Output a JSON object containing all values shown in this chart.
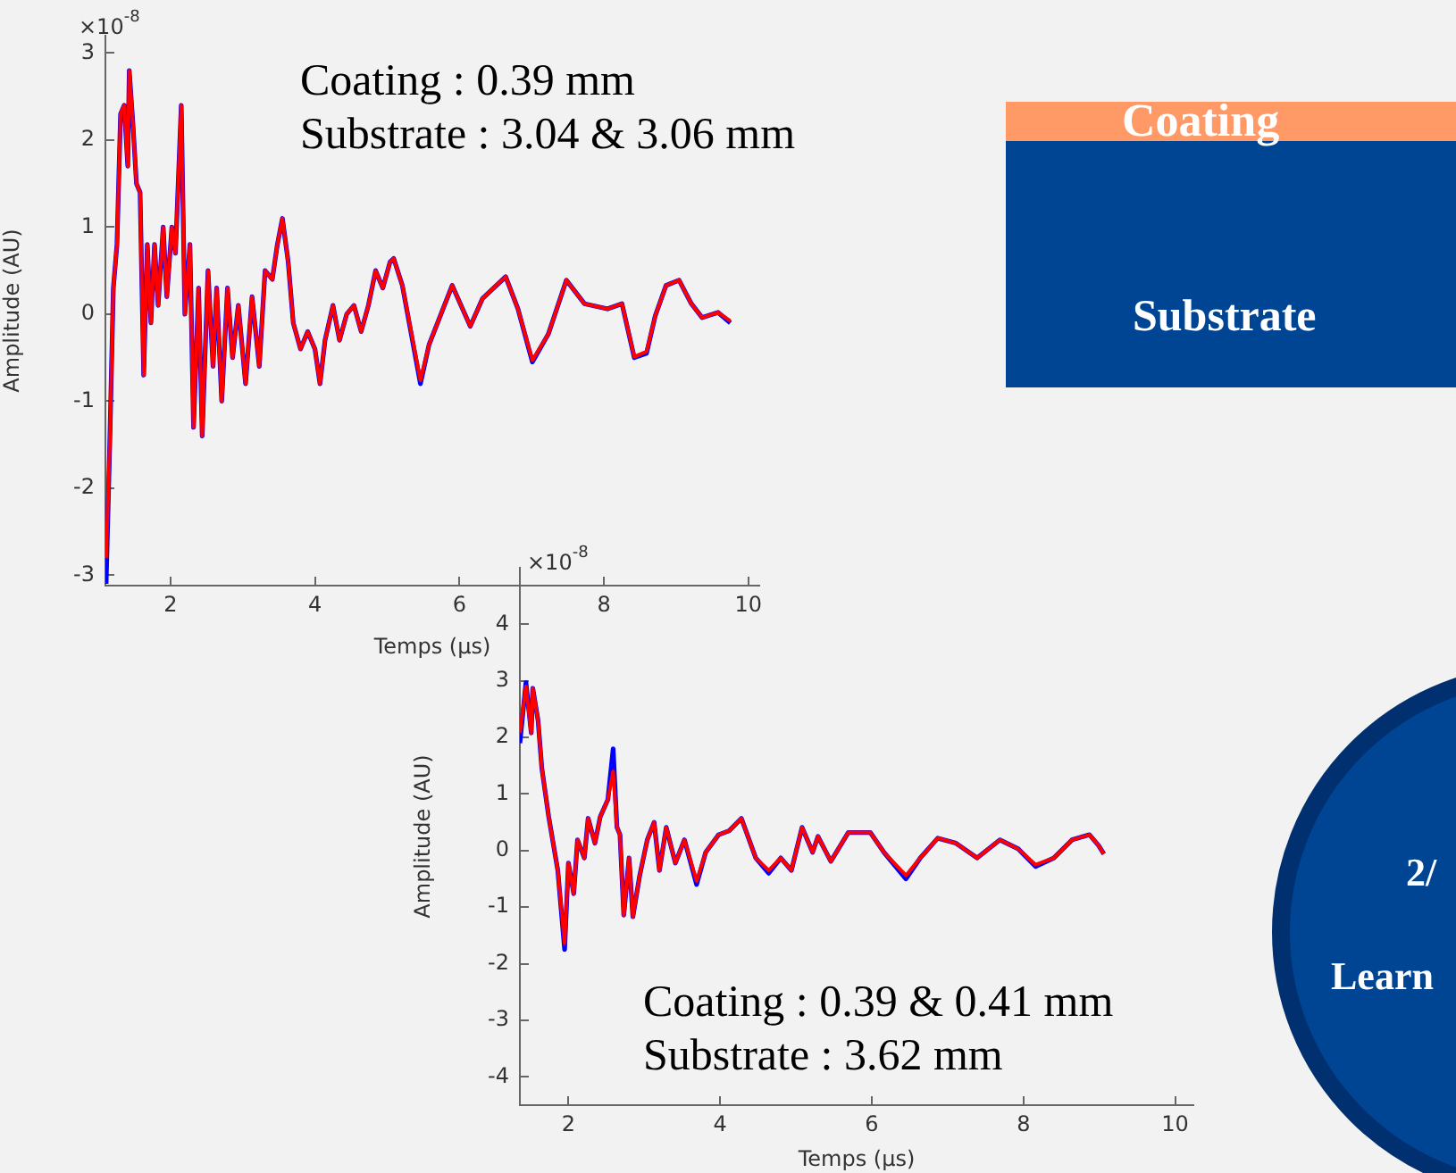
{
  "chart_data": [
    {
      "type": "line",
      "xlabel": "Temps (µs)",
      "ylabel": "Amplitude (AU)",
      "xlim": [
        1.1,
        10.15
      ],
      "ylim": [
        -3.12,
        3.2
      ],
      "xticks": [
        2,
        4,
        6,
        8,
        10
      ],
      "yticks": [
        -3,
        -2,
        -1,
        0,
        1,
        2,
        3
      ],
      "grid": false,
      "legend": false,
      "marker": "none",
      "annotations": [
        "×10$^{-8}$",
        "Coating : 0.39 mm",
        "Substrate : 3.04 & 3.06 mm"
      ],
      "x": [
        1.11,
        1.16,
        1.21,
        1.26,
        1.31,
        1.36,
        1.41,
        1.43,
        1.48,
        1.53,
        1.58,
        1.63,
        1.68,
        1.73,
        1.78,
        1.83,
        1.9,
        1.95,
        2.02,
        2.07,
        2.15,
        2.2,
        2.27,
        2.32,
        2.39,
        2.44,
        2.52,
        2.59,
        2.64,
        2.71,
        2.79,
        2.86,
        2.94,
        3.04,
        3.13,
        3.23,
        3.31,
        3.41,
        3.48,
        3.55,
        3.63,
        3.7,
        3.8,
        3.9,
        4.0,
        4.07,
        4.14,
        4.25,
        4.34,
        4.44,
        4.54,
        4.64,
        4.74,
        4.84,
        4.94,
        5.04,
        5.09,
        5.21,
        5.46,
        5.58,
        5.9,
        6.15,
        6.32,
        6.64,
        6.81,
        7.01,
        7.23,
        7.48,
        7.73,
        8.05,
        8.25,
        8.42,
        8.59,
        8.71,
        8.86,
        9.04,
        9.21,
        9.36,
        9.58,
        9.75
      ],
      "series": [
        {
          "color": "#0000ff",
          "values": [
            -3.1,
            -1.5,
            0.3,
            0.8,
            2.3,
            2.4,
            1.7,
            2.8,
            2.2,
            1.5,
            1.4,
            -0.7,
            0.8,
            -0.1,
            0.8,
            0.1,
            1.0,
            0.2,
            1.0,
            0.7,
            2.4,
            0.0,
            0.8,
            -1.3,
            0.3,
            -1.4,
            0.5,
            -0.6,
            0.3,
            -1.0,
            0.3,
            -0.5,
            0.1,
            -0.8,
            0.2,
            -0.6,
            0.5,
            0.4,
            0.8,
            1.1,
            0.6,
            -0.1,
            -0.4,
            -0.2,
            -0.4,
            -0.8,
            -0.3,
            0.1,
            -0.3,
            0.0,
            0.1,
            -0.2,
            0.1,
            0.5,
            0.3,
            0.6,
            0.64,
            0.33,
            -0.8,
            -0.35,
            0.33,
            -0.14,
            0.18,
            0.43,
            0.06,
            -0.55,
            -0.23,
            0.39,
            0.12,
            0.06,
            0.12,
            -0.5,
            -0.45,
            -0.02,
            0.33,
            0.39,
            0.12,
            -0.04,
            0.02,
            -0.1
          ]
        },
        {
          "color": "#ff0000",
          "values": [
            -2.8,
            -1.5,
            0.3,
            0.8,
            2.3,
            2.4,
            1.7,
            2.8,
            2.2,
            1.5,
            1.4,
            -0.7,
            0.8,
            -0.1,
            0.8,
            0.1,
            1.0,
            0.2,
            1.0,
            0.7,
            2.4,
            0.0,
            0.8,
            -1.3,
            0.3,
            -1.4,
            0.5,
            -0.6,
            0.3,
            -1.0,
            0.3,
            -0.5,
            0.1,
            -0.8,
            0.2,
            -0.6,
            0.5,
            0.4,
            0.8,
            1.1,
            0.6,
            -0.1,
            -0.4,
            -0.2,
            -0.4,
            -0.8,
            -0.3,
            0.1,
            -0.3,
            0.0,
            0.1,
            -0.2,
            0.1,
            0.5,
            0.3,
            0.6,
            0.64,
            0.33,
            -0.76,
            -0.35,
            0.33,
            -0.14,
            0.18,
            0.43,
            0.06,
            -0.53,
            -0.23,
            0.39,
            0.12,
            0.06,
            0.12,
            -0.49,
            -0.43,
            -0.02,
            0.33,
            0.39,
            0.12,
            -0.04,
            0.02,
            -0.08
          ]
        }
      ]
    },
    {
      "type": "line",
      "xlabel": "Temps (µs)",
      "ylabel": "Amplitude (AU)",
      "xlim": [
        1.36,
        10.24
      ],
      "ylim": [
        -4.5,
        5
      ],
      "xticks": [
        2,
        4,
        6,
        8,
        10
      ],
      "yticks": [
        -4,
        -3,
        -2,
        -1,
        0,
        1,
        2,
        3,
        4
      ],
      "grid": false,
      "legend": false,
      "marker": "none",
      "annotations": [
        "×10$^{-8}$",
        "Coating : 0.39 & 0.41 mm",
        "Substrate : 3.62 mm"
      ],
      "x": [
        1.36,
        1.44,
        1.51,
        1.53,
        1.6,
        1.65,
        1.74,
        1.86,
        1.95,
        2.0,
        2.07,
        2.12,
        2.21,
        2.26,
        2.35,
        2.42,
        2.52,
        2.59,
        2.64,
        2.68,
        2.73,
        2.8,
        2.85,
        2.94,
        3.04,
        3.13,
        3.2,
        3.29,
        3.41,
        3.53,
        3.69,
        3.81,
        3.98,
        4.12,
        4.28,
        4.47,
        4.64,
        4.8,
        4.94,
        5.08,
        5.22,
        5.29,
        5.46,
        5.69,
        5.98,
        6.16,
        6.45,
        6.64,
        6.87,
        7.11,
        7.39,
        7.69,
        7.93,
        8.16,
        8.4,
        8.64,
        8.87,
        8.99,
        9.06
      ],
      "series": [
        {
          "color": "#0000ff",
          "values": [
            1.9,
            2.97,
            2.08,
            2.87,
            2.3,
            1.45,
            0.6,
            -0.35,
            -1.75,
            -0.22,
            -0.76,
            0.19,
            -0.13,
            0.57,
            0.13,
            0.6,
            0.9,
            1.8,
            0.41,
            0.28,
            -1.14,
            -0.13,
            -1.17,
            -0.44,
            0.19,
            0.5,
            -0.35,
            0.41,
            -0.22,
            0.19,
            -0.6,
            -0.03,
            0.28,
            0.35,
            0.57,
            -0.13,
            -0.4,
            -0.13,
            -0.35,
            0.41,
            -0.03,
            0.25,
            -0.19,
            0.32,
            0.32,
            -0.03,
            -0.5,
            -0.13,
            0.22,
            0.13,
            -0.13,
            0.19,
            0.03,
            -0.28,
            -0.13,
            0.19,
            0.28,
            0.09,
            -0.06
          ]
        },
        {
          "color": "#ff0000",
          "values": [
            2.08,
            2.9,
            2.08,
            2.87,
            2.3,
            1.45,
            0.6,
            -0.35,
            -1.64,
            -0.22,
            -0.76,
            0.19,
            -0.13,
            0.57,
            0.13,
            0.6,
            0.9,
            1.4,
            0.41,
            0.28,
            -1.14,
            -0.13,
            -1.17,
            -0.44,
            0.19,
            0.5,
            -0.35,
            0.41,
            -0.22,
            0.19,
            -0.54,
            -0.03,
            0.28,
            0.35,
            0.57,
            -0.13,
            -0.35,
            -0.13,
            -0.35,
            0.41,
            -0.03,
            0.25,
            -0.19,
            0.32,
            0.32,
            -0.03,
            -0.44,
            -0.13,
            0.22,
            0.13,
            -0.13,
            0.19,
            0.03,
            -0.25,
            -0.13,
            0.19,
            0.28,
            0.09,
            -0.06
          ]
        }
      ]
    },
    {
      "type": "other",
      "annotations": [
        "Coating",
        "Substrate",
        "2/",
        "Learn"
      ]
    }
  ]
}
